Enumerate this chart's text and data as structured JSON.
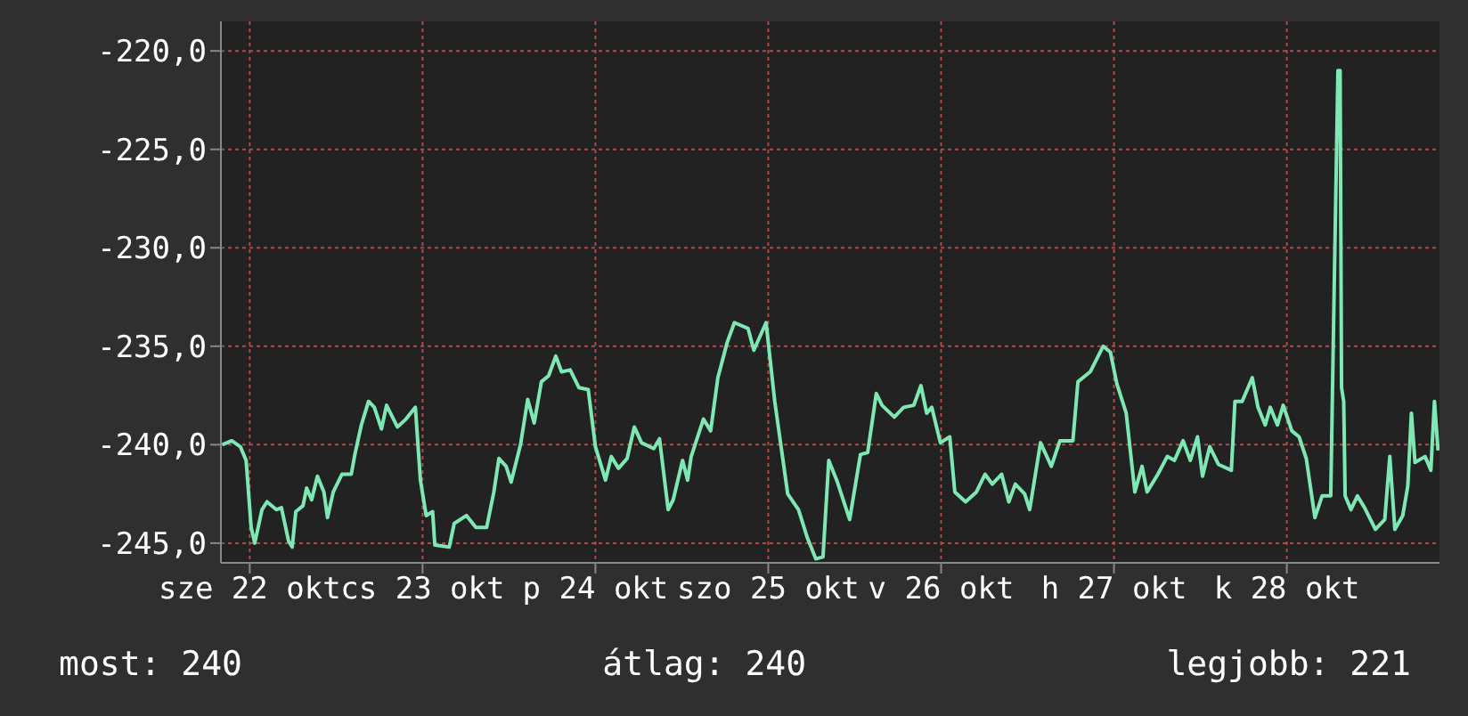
{
  "chart_data": {
    "type": "line",
    "x": [
      "--10-21T20:12",
      "--10-21T21:30",
      "--10-21T22:42",
      "--10-21T23:30",
      "--10-22T00:12",
      "--10-22T00:42",
      "--10-22T01:42",
      "--10-22T02:24",
      "--10-22T03:42",
      "--10-22T04:24",
      "--10-22T05:24",
      "--10-22T05:54",
      "--10-22T06:24",
      "--10-22T07:24",
      "--10-22T07:54",
      "--10-22T08:36",
      "--10-22T09:24",
      "--10-22T10:18",
      "--10-22T10:48",
      "--10-22T11:36",
      "--10-22T12:48",
      "--10-22T14:06",
      "--10-22T14:36",
      "--10-22T15:30",
      "--10-22T16:30",
      "--10-22T17:18",
      "--10-22T18:18",
      "--10-22T19:00",
      "--10-22T20:30",
      "--10-22T21:42",
      "--10-22T23:00",
      "--10-22T23:42",
      "--10-23T00:30",
      "--10-23T01:24",
      "--10-23T01:42",
      "--10-23T03:42",
      "--10-23T04:24",
      "--10-23T06:06",
      "--10-23T07:24",
      "--10-23T08:54",
      "--10-23T09:54",
      "--10-23T10:36",
      "--10-23T11:36",
      "--10-23T12:18",
      "--10-23T13:36",
      "--10-23T14:36",
      "--10-23T15:30",
      "--10-23T16:30",
      "--10-23T17:30",
      "--10-23T18:30",
      "--10-23T19:18",
      "--10-23T20:30",
      "--10-23T21:42",
      "--10-23T23:00",
      "--10-24T00:00",
      "--10-24T01:24",
      "--10-24T02:12",
      "--10-24T03:12",
      "--10-24T04:24",
      "--10-24T05:24",
      "--10-24T06:24",
      "--10-24T08:06",
      "--10-24T08:54",
      "--10-24T10:06",
      "--10-24T10:48",
      "--10-24T12:06",
      "--10-24T12:48",
      "--10-24T13:18",
      "--10-24T15:00",
      "--10-24T16:00",
      "--10-24T17:00",
      "--10-24T18:18",
      "--10-24T19:18",
      "--10-24T21:12",
      "--10-24T22:00",
      "--10-24T23:42",
      "--10-25T00:54",
      "--10-25T02:42",
      "--10-25T04:12",
      "--10-25T05:24",
      "--10-25T06:36",
      "--10-25T07:36",
      "--10-25T08:24",
      "--10-25T09:36",
      "--10-25T11:18",
      "--10-25T12:48",
      "--10-25T13:48",
      "--10-25T15:00",
      "--10-25T15:48",
      "--10-25T17:30",
      "--10-25T18:48",
      "--10-25T20:12",
      "--10-25T21:12",
      "--10-25T22:00",
      "--10-25T22:42",
      "--10-25T23:54",
      "--10-26T01:12",
      "--10-26T01:54",
      "--10-26T03:24",
      "--10-26T04:54",
      "--10-26T06:06",
      "--10-26T07:06",
      "--10-26T08:24",
      "--10-26T09:24",
      "--10-26T10:18",
      "--10-26T11:36",
      "--10-26T12:18",
      "--10-26T13:48",
      "--10-26T15:18",
      "--10-26T16:30",
      "--10-26T18:18",
      "--10-26T19:00",
      "--10-26T20:42",
      "--10-26T22:30",
      "--10-26T23:30",
      "--10-27T00:24",
      "--10-27T01:42",
      "--10-27T02:54",
      "--10-27T03:54",
      "--10-27T04:36",
      "--10-27T06:06",
      "--10-27T07:24",
      "--10-27T08:24",
      "--10-27T09:36",
      "--10-27T10:36",
      "--10-27T11:36",
      "--10-27T12:18",
      "--10-27T13:18",
      "--10-27T14:30",
      "--10-27T16:18",
      "--10-27T16:48",
      "--10-27T17:48",
      "--10-27T19:12",
      "--10-27T20:00",
      "--10-27T21:00",
      "--10-27T21:42",
      "--10-27T22:42",
      "--10-27T23:30",
      "--10-28T00:42",
      "--10-28T01:42",
      "--10-28T02:42",
      "--10-28T03:54",
      "--10-28T04:54",
      "--10-28T06:06",
      "--10-28T06:36",
      "--10-28T07:06",
      "--10-28T07:24",
      "--10-28T07:36",
      "--10-28T07:54",
      "--10-28T08:06",
      "--10-28T08:54",
      "--10-28T09:48",
      "--10-28T10:48",
      "--10-28T12:18",
      "--10-28T13:36",
      "--10-28T14:18",
      "--10-28T15:00",
      "--10-28T16:06",
      "--10-28T16:48",
      "--10-28T17:18",
      "--10-28T17:48",
      "--10-28T19:12",
      "--10-28T20:00",
      "--10-28T20:30",
      "--10-28T21:00"
    ],
    "series": [
      {
        "color": "#7ee8b4",
        "values": [
          -240.0,
          -239.8,
          -240.1,
          -240.8,
          -244.2,
          -245.0,
          -243.3,
          -242.9,
          -243.3,
          -243.2,
          -244.9,
          -245.2,
          -243.4,
          -243.1,
          -242.2,
          -242.8,
          -241.6,
          -242.4,
          -243.7,
          -242.4,
          -241.5,
          -241.5,
          -240.5,
          -239.0,
          -237.8,
          -238.1,
          -239.2,
          -238.0,
          -239.1,
          -238.7,
          -238.1,
          -241.8,
          -243.6,
          -243.4,
          -245.1,
          -245.2,
          -244.0,
          -243.6,
          -244.2,
          -244.2,
          -242.4,
          -240.7,
          -241.1,
          -241.9,
          -240.0,
          -237.7,
          -238.9,
          -236.8,
          -236.5,
          -235.5,
          -236.3,
          -236.2,
          -237.1,
          -237.2,
          -240.1,
          -241.8,
          -240.6,
          -241.2,
          -240.7,
          -239.1,
          -239.9,
          -240.2,
          -239.7,
          -243.3,
          -242.8,
          -240.8,
          -241.8,
          -240.6,
          -238.7,
          -239.3,
          -236.6,
          -234.8,
          -233.8,
          -234.1,
          -235.2,
          -233.8,
          -237.8,
          -242.5,
          -243.3,
          -244.7,
          -245.8,
          -245.7,
          -240.8,
          -241.9,
          -243.8,
          -240.5,
          -240.4,
          -237.4,
          -238.0,
          -238.6,
          -238.1,
          -238.0,
          -237.0,
          -238.4,
          -238.1,
          -239.9,
          -239.6,
          -242.4,
          -242.9,
          -242.4,
          -241.5,
          -242.0,
          -241.5,
          -242.9,
          -242.0,
          -242.5,
          -243.3,
          -239.9,
          -241.1,
          -239.8,
          -239.8,
          -236.8,
          -236.3,
          -235.0,
          -235.3,
          -236.9,
          -238.4,
          -242.4,
          -241.1,
          -242.4,
          -241.5,
          -240.6,
          -240.8,
          -239.8,
          -240.8,
          -239.6,
          -241.6,
          -240.1,
          -241.0,
          -241.3,
          -237.8,
          -237.8,
          -236.6,
          -238.1,
          -239.0,
          -238.1,
          -239.0,
          -238.0,
          -239.3,
          -239.6,
          -240.7,
          -243.7,
          -242.6,
          -242.6,
          -231.6,
          -221.0,
          -221.0,
          -237.1,
          -237.8,
          -242.6,
          -243.3,
          -242.6,
          -243.2,
          -244.3,
          -243.8,
          -240.6,
          -244.3,
          -243.6,
          -242.1,
          -238.4,
          -240.9,
          -240.6,
          -241.3,
          -237.8,
          -240.3
        ]
      }
    ],
    "xlim": [
      "--10-21T20:00",
      "--10-28T21:12"
    ],
    "xticks": [
      {
        "value": "--10-22T00:00",
        "label": "sze 22 okt"
      },
      {
        "value": "--10-23T00:00",
        "label": "cs 23 okt"
      },
      {
        "value": "--10-24T00:00",
        "label": "p 24 okt"
      },
      {
        "value": "--10-25T00:00",
        "label": "szo 25 okt"
      },
      {
        "value": "--10-26T00:00",
        "label": "v 26 okt"
      },
      {
        "value": "--10-27T00:00",
        "label": "h 27 okt"
      },
      {
        "value": "--10-28T00:00",
        "label": "k 28 okt"
      }
    ],
    "ylim": [
      -246,
      -218.5
    ],
    "yticks": [
      {
        "value": -245,
        "label": "-245,0"
      },
      {
        "value": -240,
        "label": "-240,0"
      },
      {
        "value": -235,
        "label": "-235,0"
      },
      {
        "value": -230,
        "label": "-230,0"
      },
      {
        "value": -225,
        "label": "-225,0"
      },
      {
        "value": -220,
        "label": "-220,0"
      }
    ],
    "grid": true,
    "annotations": [
      "most: 240",
      "átlag: 240",
      "legjobb: 221"
    ]
  }
}
